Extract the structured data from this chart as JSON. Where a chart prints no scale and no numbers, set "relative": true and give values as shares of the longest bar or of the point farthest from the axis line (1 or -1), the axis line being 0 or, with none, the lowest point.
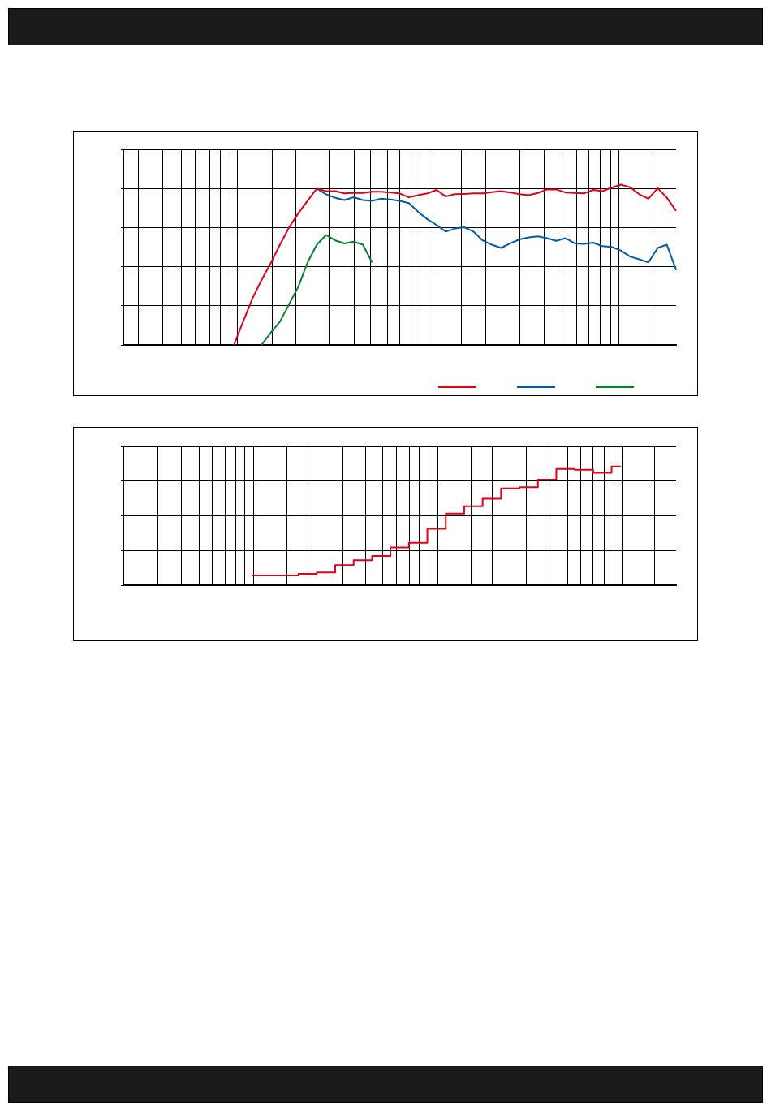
{
  "chart_data": [
    {
      "type": "line",
      "relative": true,
      "grid": true,
      "categories": [
        null,
        null,
        null,
        null,
        null,
        null,
        null,
        null,
        null,
        null,
        null,
        null,
        null,
        null,
        null,
        null,
        null,
        null,
        null,
        null,
        null,
        null,
        null,
        null,
        null,
        null,
        null,
        null,
        null,
        null,
        null,
        null,
        null,
        null,
        null,
        null,
        null,
        null,
        null,
        null,
        null,
        null,
        null,
        null,
        null,
        null,
        null,
        null,
        null,
        null,
        null,
        null,
        null,
        null,
        null,
        null,
        null,
        null,
        null,
        null,
        null
      ],
      "series": [
        {
          "color": "#e2001a",
          "values": [
            null,
            null,
            null,
            null,
            null,
            null,
            null,
            null,
            null,
            null,
            null,
            null,
            0,
            0.145,
            0.288,
            0.405,
            0.51,
            0.625,
            0.734,
            0.822,
            0.899,
            0.975,
            0.959,
            0.959,
            0.945,
            0.948,
            0.948,
            0.956,
            0.956,
            0.951,
            0.945,
            0.921,
            0.934,
            0.945,
            0.967,
            0.926,
            0.94,
            0.942,
            0.945,
            0.945,
            0.953,
            0.959,
            0.951,
            0.94,
            0.934,
            0.948,
            0.97,
            0.97,
            0.951,
            0.948,
            0.945,
            0.967,
            0.959,
            0.981,
            1,
            0.984,
            0.94,
            0.912,
            0.978,
            0.918,
            0.836
          ]
        },
        {
          "color": "#005ca8",
          "values": [
            null,
            null,
            null,
            null,
            null,
            null,
            null,
            null,
            null,
            null,
            null,
            null,
            null,
            null,
            null,
            null,
            null,
            null,
            null,
            null,
            null,
            0.975,
            0.94,
            0.918,
            0.904,
            0.921,
            0.904,
            0.899,
            0.912,
            0.907,
            0.899,
            0.885,
            0.83,
            0.784,
            0.748,
            0.707,
            0.726,
            0.734,
            0.707,
            0.652,
            0.625,
            0.605,
            0.633,
            0.658,
            0.671,
            0.677,
            0.666,
            0.649,
            0.666,
            0.633,
            0.63,
            0.638,
            0.616,
            0.611,
            0.589,
            0.551,
            0.534,
            0.515,
            0.605,
            0.625,
            0.468
          ]
        },
        {
          "color": "#00852f",
          "values": [
            null,
            null,
            null,
            null,
            null,
            null,
            null,
            null,
            null,
            null,
            null,
            null,
            null,
            null,
            null,
            0,
            0.077,
            0.145,
            0.255,
            0.364,
            0.515,
            0.625,
            0.685,
            0.652,
            0.633,
            0.644,
            0.625,
            0.515,
            null,
            null,
            null,
            null,
            null,
            null,
            null,
            null,
            null,
            null,
            null,
            null,
            null,
            null,
            null,
            null,
            null,
            null,
            null,
            null,
            null,
            null,
            null,
            null,
            null,
            null,
            null,
            null,
            null,
            null,
            null,
            null,
            null
          ]
        }
      ]
    },
    {
      "type": "step",
      "relative": true,
      "grid": true,
      "color": "#e2001a",
      "categories": [
        null,
        null,
        null,
        null,
        null,
        null,
        null,
        null,
        null,
        null,
        null,
        null,
        null,
        null,
        null,
        null,
        null,
        null,
        null,
        null,
        null,
        null,
        null,
        null,
        null,
        null,
        null,
        null,
        null,
        null,
        null
      ],
      "values": [
        null,
        null,
        null,
        null,
        null,
        null,
        null,
        0.082,
        0.082,
        0.082,
        0.095,
        0.108,
        0.17,
        0.21,
        0.246,
        0.318,
        0.357,
        0.475,
        0.603,
        0.666,
        0.728,
        0.816,
        0.826,
        0.889,
        0.98,
        0.974,
        0.948,
        1,
        null,
        null,
        null
      ]
    }
  ]
}
